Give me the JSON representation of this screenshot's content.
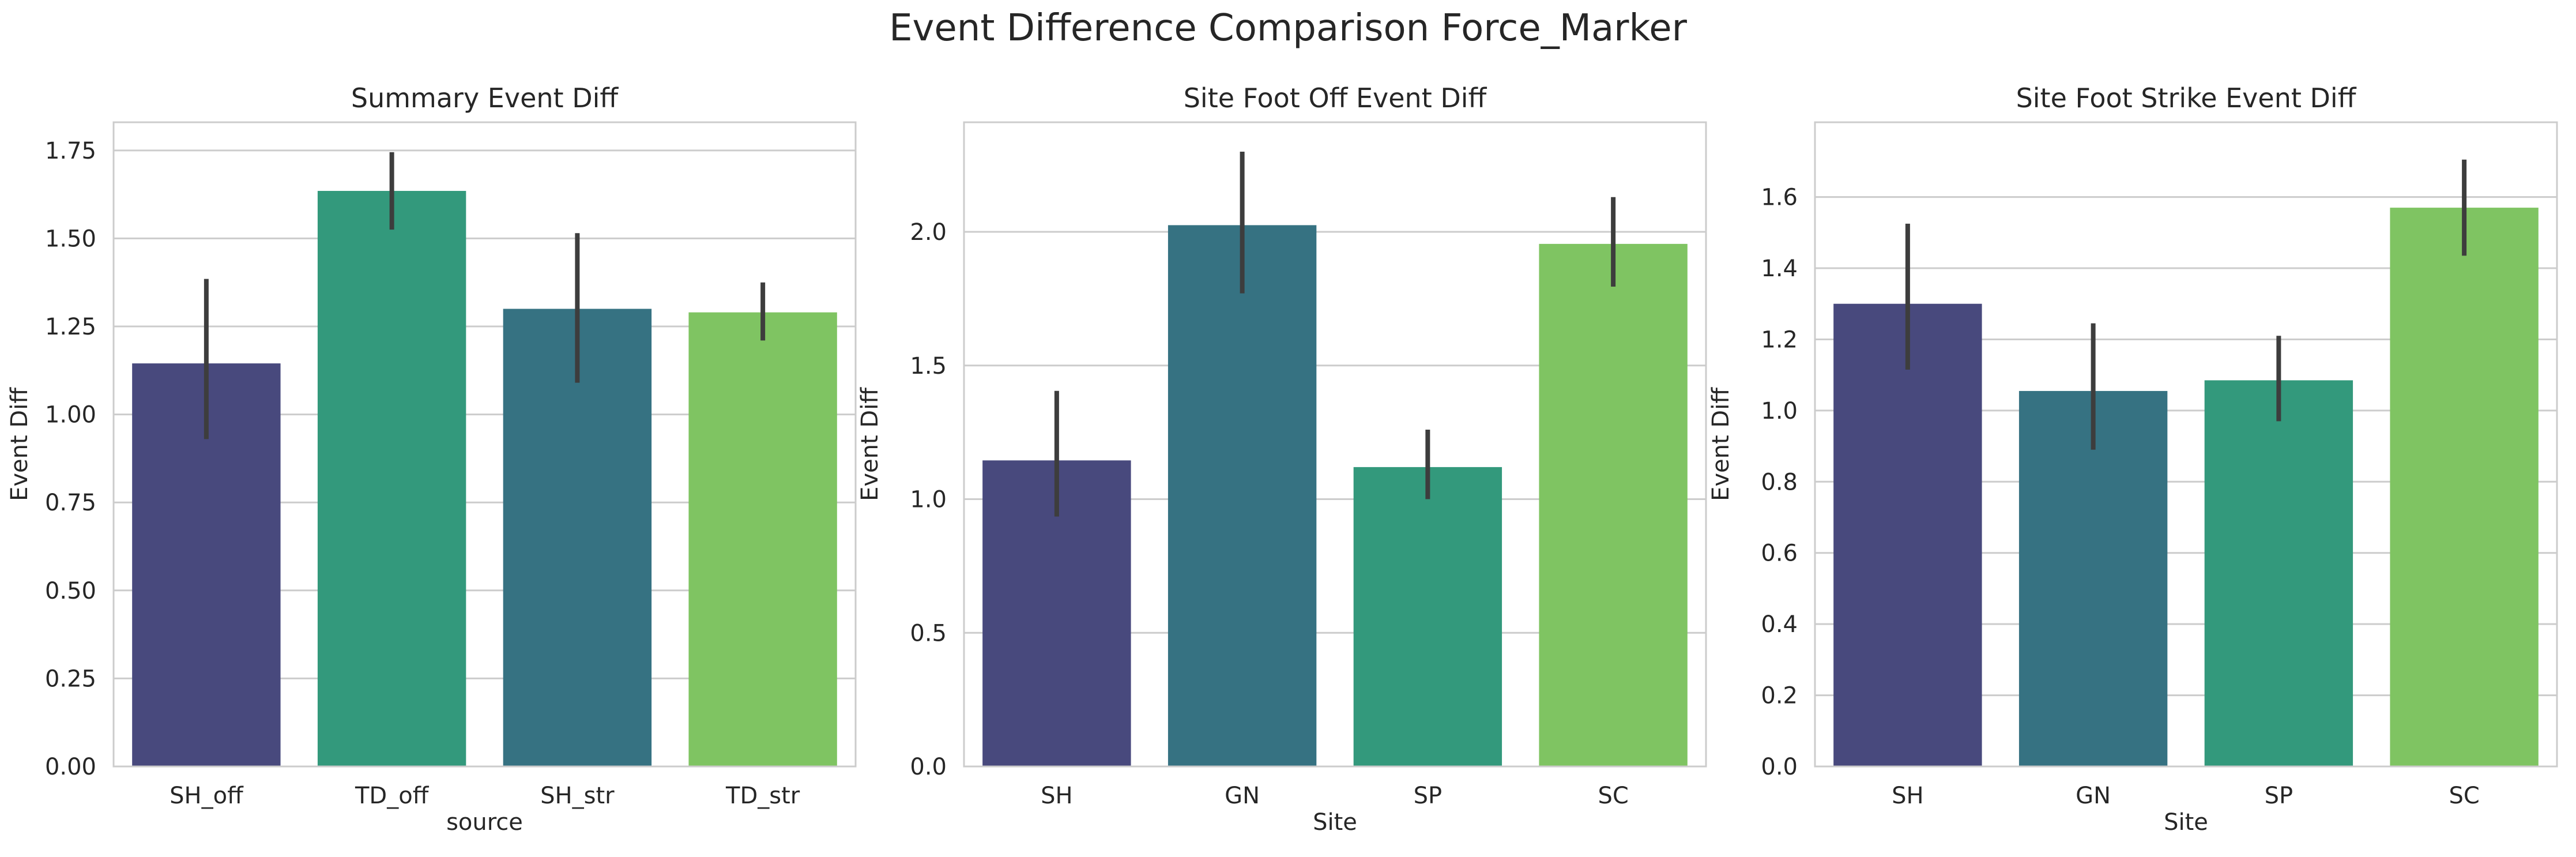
{
  "figure_title": "Event Difference Comparison Force_Marker",
  "colors": {
    "viridis_1": "#48497d",
    "viridis_2": "#367282",
    "viridis_3": "#33997c",
    "viridis_4": "#7fc462",
    "error_bar": "#3d3d3d",
    "grid": "#cccccc",
    "frame": "#cccccc",
    "text": "#262626"
  },
  "chart_data": [
    {
      "type": "bar",
      "title": "Summary Event Diff",
      "xlabel": "source",
      "ylabel": "Event Diff",
      "ylim": [
        0,
        1.83
      ],
      "yticks": [
        0.0,
        0.25,
        0.5,
        0.75,
        1.0,
        1.25,
        1.5,
        1.75
      ],
      "ytick_labels": [
        "0.00",
        "0.25",
        "0.50",
        "0.75",
        "1.00",
        "1.25",
        "1.50",
        "1.75"
      ],
      "categories": [
        "SH_off",
        "TD_off",
        "SH_str",
        "TD_str"
      ],
      "values": [
        1.145,
        1.635,
        1.3,
        1.29
      ],
      "ci_low": [
        0.93,
        1.525,
        1.09,
        1.21
      ],
      "ci_high": [
        1.385,
        1.745,
        1.515,
        1.375
      ],
      "bar_colors": [
        "#48497d",
        "#33997c",
        "#367282",
        "#7fc462"
      ],
      "grid": true
    },
    {
      "type": "bar",
      "title": "Site Foot Off Event Diff",
      "xlabel": "Site",
      "ylabel": "Event Diff",
      "ylim": [
        0,
        2.41
      ],
      "yticks": [
        0.0,
        0.5,
        1.0,
        1.5,
        2.0
      ],
      "ytick_labels": [
        "0.0",
        "0.5",
        "1.0",
        "1.5",
        "2.0"
      ],
      "categories": [
        "SH",
        "GN",
        "SP",
        "SC"
      ],
      "values": [
        1.145,
        2.025,
        1.12,
        1.955
      ],
      "ci_low": [
        0.935,
        1.77,
        1.0,
        1.795
      ],
      "ci_high": [
        1.405,
        2.3,
        1.26,
        2.13
      ],
      "bar_colors": [
        "#48497d",
        "#367282",
        "#33997c",
        "#7fc462"
      ],
      "grid": true
    },
    {
      "type": "bar",
      "title": "Site Foot Strike Event Diff",
      "xlabel": "Site",
      "ylabel": "Event Diff",
      "ylim": [
        0,
        1.81
      ],
      "yticks": [
        0.0,
        0.2,
        0.4,
        0.6,
        0.8,
        1.0,
        1.2,
        1.4,
        1.6
      ],
      "ytick_labels": [
        "0.0",
        "0.2",
        "0.4",
        "0.6",
        "0.8",
        "1.0",
        "1.2",
        "1.4",
        "1.6"
      ],
      "categories": [
        "SH",
        "GN",
        "SP",
        "SC"
      ],
      "values": [
        1.3,
        1.055,
        1.085,
        1.57
      ],
      "ci_low": [
        1.115,
        0.89,
        0.97,
        1.435
      ],
      "ci_high": [
        1.525,
        1.245,
        1.21,
        1.705
      ],
      "bar_colors": [
        "#48497d",
        "#367282",
        "#33997c",
        "#7fc462"
      ],
      "grid": true
    }
  ]
}
